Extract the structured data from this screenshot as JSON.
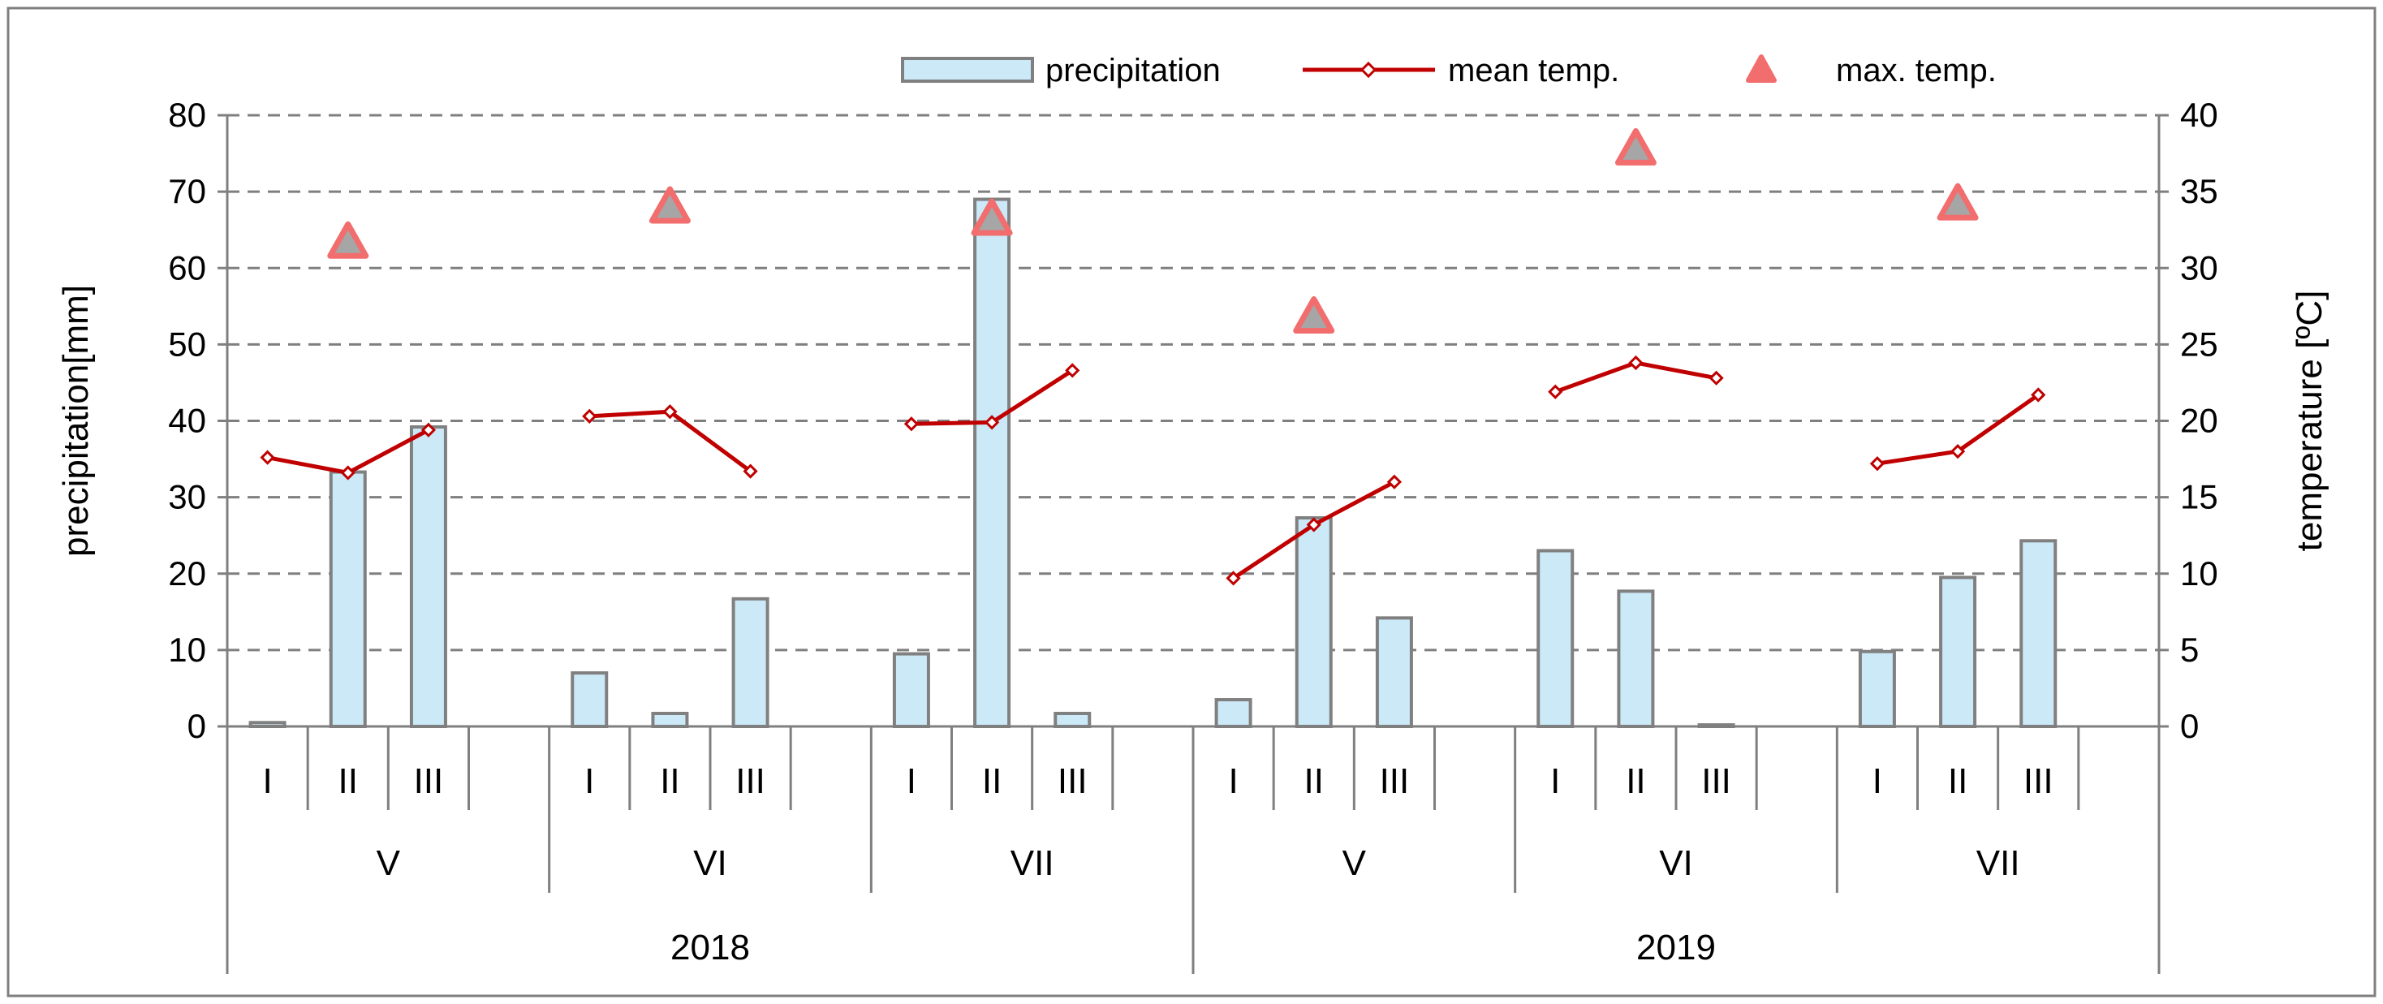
{
  "chart_data": {
    "type": "bar",
    "title": "",
    "legend": [
      "precipitation",
      "mean temp.",
      "max. temp."
    ],
    "legend_position": "top-right",
    "ylabel": "precipitation[mm]",
    "y2label": "temperature [ºC]",
    "ylim": [
      0,
      80
    ],
    "y2lim": [
      0,
      40
    ],
    "yticks": [
      "0",
      "10",
      "20",
      "30",
      "40",
      "50",
      "60",
      "70",
      "80"
    ],
    "y2ticks": [
      "0",
      "5",
      "10",
      "15",
      "20",
      "25",
      "30",
      "35",
      "40"
    ],
    "decades": [
      "I",
      "II",
      "III"
    ],
    "months": [
      "V",
      "VI",
      "VII",
      "V",
      "VI",
      "VII"
    ],
    "years": [
      "2018",
      "2019"
    ],
    "series": [
      {
        "name": "precipitation",
        "kind": "bar",
        "axis": "left",
        "color": "#cce9f8",
        "edge": "#808080",
        "values": [
          0.5,
          33.3,
          39.2,
          7.0,
          1.7,
          16.7,
          9.5,
          69.0,
          1.7,
          3.5,
          27.3,
          14.2,
          23.0,
          17.7,
          0.2,
          9.8,
          19.5,
          24.3
        ]
      },
      {
        "name": "mean temp.",
        "kind": "line",
        "axis": "right",
        "color": "#c00000",
        "values": [
          17.6,
          16.6,
          19.4,
          20.3,
          20.6,
          16.7,
          19.8,
          19.9,
          23.3,
          9.7,
          13.2,
          16.0,
          21.9,
          23.8,
          22.8,
          17.2,
          18.0,
          21.7
        ]
      },
      {
        "name": "max. temp.",
        "kind": "marker",
        "axis": "right",
        "color": "#f26d6d",
        "fill": "#a6a6a6",
        "values": [
          null,
          31.7,
          null,
          null,
          34.0,
          null,
          null,
          33.2,
          null,
          null,
          26.8,
          null,
          null,
          37.8,
          null,
          null,
          34.2,
          null
        ]
      }
    ]
  }
}
